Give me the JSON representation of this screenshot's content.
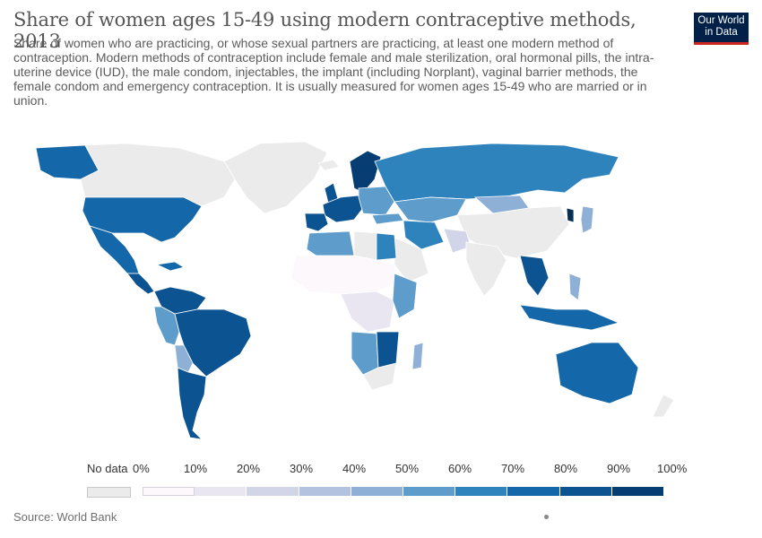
{
  "title": "Share of women ages 15-49 using modern contraceptive methods, 2013",
  "subtitle": "Share of women who are practicing, or whose sexual partners are practicing, at least one modern method of contraception. Modern methods of contraception include female and male sterilization, oral hormonal pills, the intra-uterine device (IUD), the male condom, injectables, the implant (including Norplant), vaginal barrier methods, the female condom and emergency contraception. It is usually measured for women ages 15-49 who are married or in union.",
  "logo": {
    "line1": "Our World",
    "line2": "in Data"
  },
  "legend": {
    "no_data_label": "No data",
    "tick_labels": [
      "0%",
      "10%",
      "20%",
      "30%",
      "40%",
      "50%",
      "60%",
      "70%",
      "80%",
      "90%",
      "100%"
    ],
    "bin_colors": [
      "#fcf8fc",
      "#e9e6f2",
      "#d2d4e8",
      "#b3c2de",
      "#8eb0d6",
      "#5e9ccb",
      "#2f83bd",
      "#1467a8",
      "#0c5391",
      "#063e73",
      "#052f55"
    ],
    "no_data_color": "#ebebeb"
  },
  "source": "Source: World Bank",
  "map_colors": {
    "no_data": "#ebebeb",
    "ocean": "#ffffff"
  }
}
